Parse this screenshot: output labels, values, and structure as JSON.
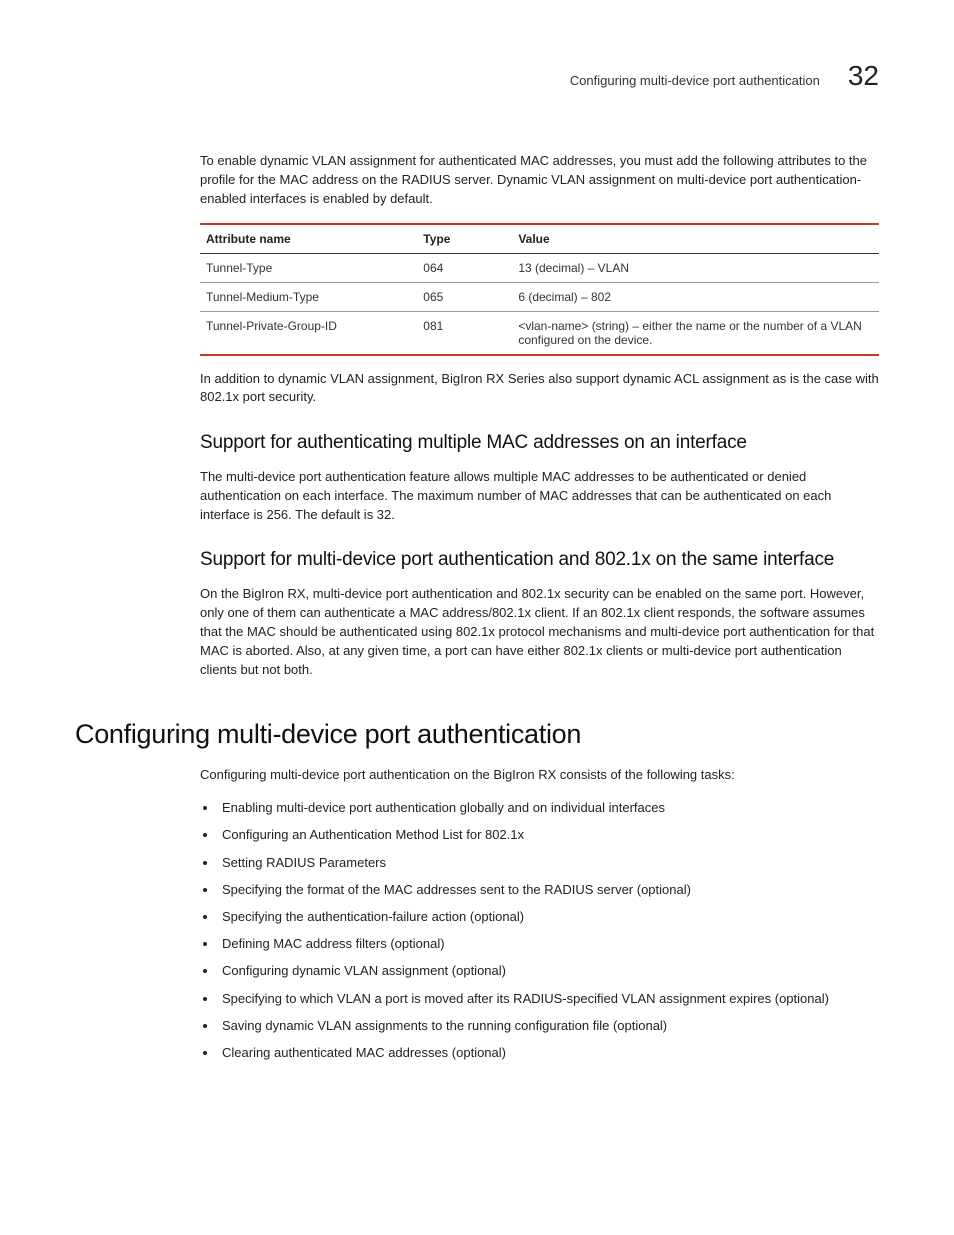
{
  "header": {
    "running_head": "Configuring multi-device port authentication",
    "chapter_number": "32"
  },
  "intro_paragraph": "To enable dynamic VLAN assignment for authenticated MAC addresses, you must add the following attributes to the profile for the MAC address on the RADIUS server. Dynamic VLAN assignment on multi-device port authentication-enabled interfaces is enabled by default.",
  "table": {
    "columns": [
      "Attribute name",
      "Type",
      "Value"
    ],
    "rows": [
      [
        "Tunnel-Type",
        "064",
        "13 (decimal) – VLAN"
      ],
      [
        "Tunnel-Medium-Type",
        "065",
        "6 (decimal) – 802"
      ],
      [
        "Tunnel-Private-Group-ID",
        "081",
        "<vlan-name> (string) – either the name or the number of a VLAN configured on the device."
      ]
    ],
    "border_color": "#c0392b",
    "row_border_color": "#999999"
  },
  "after_table_paragraph": "In addition to dynamic VLAN assignment, BigIron RX Series also support dynamic ACL assignment as is the case with 802.1x port security.",
  "subsection1": {
    "title": "Support for authenticating multiple MAC addresses on an interface",
    "body": "The multi-device port authentication feature allows multiple MAC addresses to be authenticated or denied authentication on each interface. The maximum number of MAC addresses that can be authenticated on each interface is 256. The default is 32."
  },
  "subsection2": {
    "title": "Support for multi-device port authentication and 802.1x on the same interface",
    "body": "On the BigIron RX, multi-device port authentication and 802.1x security can be enabled on the same port. However, only one of them can authenticate a MAC address/802.1x client. If an 802.1x client responds, the software assumes that the MAC should be authenticated using 802.1x protocol mechanisms and multi-device port authentication for that MAC is aborted. Also, at any given time, a port can have either 802.1x clients or multi-device port authentication clients but not both."
  },
  "main_section": {
    "title": "Configuring multi-device port authentication",
    "intro": "Configuring multi-device port authentication on the BigIron RX consists of the following tasks:",
    "tasks": [
      "Enabling multi-device port authentication globally and on individual interfaces",
      "Configuring an Authentication Method List for 802.1x",
      "Setting RADIUS Parameters",
      "Specifying the format of the MAC addresses sent to the RADIUS server (optional)",
      "Specifying the authentication-failure action (optional)",
      "Defining MAC address filters (optional)",
      "Configuring dynamic VLAN assignment (optional)",
      "Specifying to which VLAN a port is moved after its RADIUS-specified VLAN assignment expires (optional)",
      "Saving dynamic VLAN assignments to the running configuration file (optional)",
      "Clearing authenticated MAC addresses (optional)"
    ]
  }
}
